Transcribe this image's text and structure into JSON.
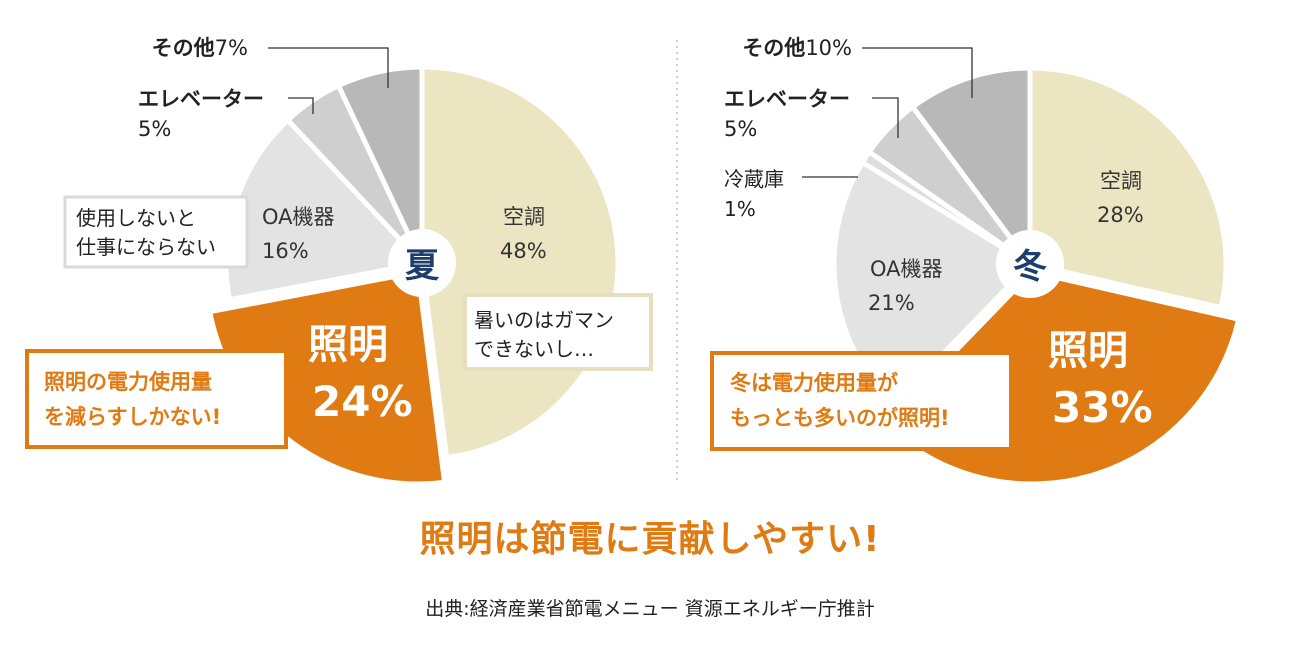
{
  "colors": {
    "accent": "#e07b14",
    "aircon": "#ece5c2",
    "oa": "#e3e3e3",
    "fridge": "#dedede",
    "elevator": "#cfcfcf",
    "other": "#b8b8b8",
    "season_text": "#1d3d6b"
  },
  "chart_data": [
    {
      "type": "pie",
      "season_label": "夏",
      "slices": [
        {
          "name": "空調",
          "value": 48,
          "value_label": "48%"
        },
        {
          "name": "照明",
          "value": 24,
          "value_label": "24%"
        },
        {
          "name": "OA機器",
          "value": 16,
          "value_label": "16%"
        },
        {
          "name": "エレベーター",
          "value": 5,
          "value_label": "5%"
        },
        {
          "name": "その他",
          "value": 7,
          "value_label": "7%"
        }
      ],
      "callouts": [
        "暑いのはガマン\nできないし…",
        "使用しないと\n仕事にならない",
        "照明の電力使用量\nを減らすしかない!"
      ]
    },
    {
      "type": "pie",
      "season_label": "冬",
      "slices": [
        {
          "name": "空調",
          "value": 28,
          "value_label": "28%"
        },
        {
          "name": "照明",
          "value": 33,
          "value_label": "33%"
        },
        {
          "name": "OA機器",
          "value": 21,
          "value_label": "21%"
        },
        {
          "name": "冷蔵庫",
          "value": 1,
          "value_label": "1%"
        },
        {
          "name": "エレベーター",
          "value": 5,
          "value_label": "5%"
        },
        {
          "name": "その他",
          "value": 10,
          "value_label": "10%"
        }
      ],
      "callouts": [
        "冬は電力使用量が\nもっとも多いのが照明!"
      ]
    }
  ],
  "headline": "照明は節電に貢献しやすい!",
  "source": "出典:経済産業省節電メニュー 資源エネルギー庁推計"
}
